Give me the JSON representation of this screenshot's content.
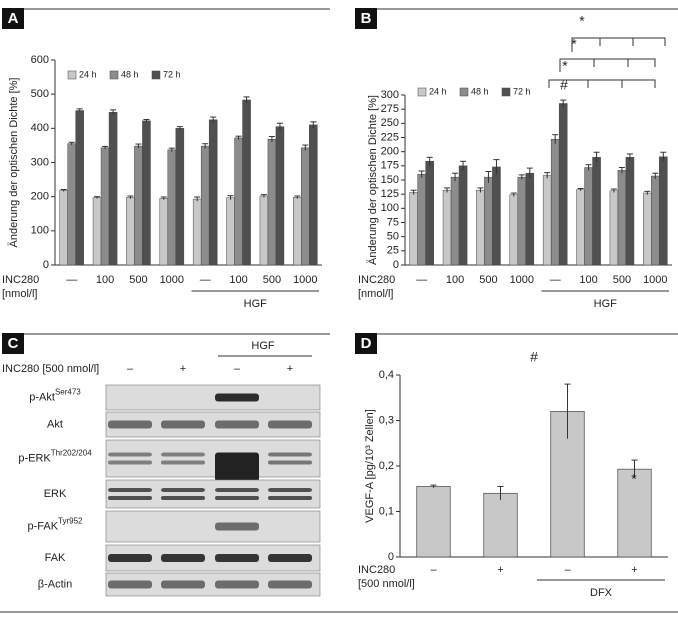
{
  "chart_data": [
    {
      "type": "bar",
      "label": "A",
      "ylabel": "Änderung der optischen Dichte [%]",
      "row_label": [
        "INC280",
        "[nmol/l]"
      ],
      "group_label": "HGF",
      "categories": [
        "—",
        "100",
        "500",
        "1000",
        "—",
        "100",
        "500",
        "1000"
      ],
      "series": [
        {
          "name": "24 h",
          "color": "#c8c8c8",
          "values": [
            218,
            197,
            198,
            195,
            193,
            197,
            202,
            198
          ],
          "errors": [
            3,
            3,
            4,
            4,
            6,
            6,
            4,
            4
          ]
        },
        {
          "name": "48 h",
          "color": "#8c8c8c",
          "values": [
            355,
            343,
            348,
            337,
            348,
            372,
            368,
            343
          ],
          "errors": [
            4,
            4,
            6,
            5,
            7,
            5,
            8,
            8
          ]
        },
        {
          "name": "72 h",
          "color": "#505050",
          "values": [
            452,
            447,
            422,
            400,
            425,
            483,
            405,
            410
          ],
          "errors": [
            5,
            7,
            4,
            5,
            8,
            9,
            10,
            9
          ]
        }
      ],
      "ylim": [
        0,
        600
      ],
      "yticks": [
        0,
        100,
        200,
        300,
        400,
        500,
        600
      ]
    },
    {
      "type": "bar",
      "label": "B",
      "ylabel": "Änderung der optischen Dichte [%]",
      "row_label": [
        "INC280",
        "[nmol/l]"
      ],
      "group_label": "HGF",
      "categories": [
        "—",
        "100",
        "500",
        "1000",
        "—",
        "100",
        "500",
        "1000"
      ],
      "series": [
        {
          "name": "24 h",
          "color": "#c8c8c8",
          "values": [
            128,
            132,
            132,
            124,
            158,
            133,
            131,
            127
          ],
          "errors": [
            4,
            4,
            4,
            3,
            5,
            2,
            3,
            3
          ]
        },
        {
          "name": "48 h",
          "color": "#8c8c8c",
          "values": [
            160,
            155,
            155,
            155,
            222,
            172,
            167,
            157
          ],
          "errors": [
            6,
            7,
            10,
            4,
            8,
            5,
            5,
            5
          ]
        },
        {
          "name": "72 h",
          "color": "#505050",
          "values": [
            183,
            175,
            173,
            162,
            285,
            190,
            190,
            191
          ],
          "errors": [
            7,
            8,
            13,
            9,
            6,
            9,
            6,
            8
          ]
        }
      ],
      "annotations": [
        "#",
        "*",
        "*",
        "*"
      ],
      "ylim": [
        0,
        300
      ],
      "yticks": [
        0,
        25,
        50,
        75,
        100,
        125,
        150,
        175,
        200,
        225,
        250,
        275,
        300
      ]
    },
    {
      "type": "bar",
      "label": "D",
      "ylabel": "VEGF-A [pg/10³ Zellen]",
      "row_label": [
        "INC280",
        "[500 nmol/l]"
      ],
      "group_label": "DFX",
      "categories": [
        "–",
        "+",
        "–",
        "+"
      ],
      "values": [
        0.155,
        0.14,
        0.32,
        0.193
      ],
      "errors": [
        0.003,
        0.015,
        0.06,
        0.02
      ],
      "color": "#c8c8c8",
      "annotations": [
        "#",
        "*"
      ],
      "ylim": [
        0,
        0.4
      ],
      "yticks": [
        0,
        {
          "value": 0.1,
          "label": "0,1"
        },
        {
          "value": 0.2,
          "label": "0,2"
        },
        {
          "value": 0.3,
          "label": "0,3"
        },
        {
          "value": 0.4,
          "label": "0,4"
        }
      ]
    }
  ],
  "blot": {
    "label": "C",
    "row_label": "INC280 [500 nmol/l]",
    "group_label": "HGF",
    "lanes": [
      "–",
      "+",
      "–",
      "+"
    ],
    "rows": [
      {
        "name": "p-Akt",
        "sup": "Ser473"
      },
      {
        "name": "Akt"
      },
      {
        "name": "p-ERK",
        "sup": "Thr202/204"
      },
      {
        "name": "ERK"
      },
      {
        "name": "p-FAK",
        "sup": "Tyr952"
      },
      {
        "name": "FAK"
      },
      {
        "name": "β-Actin"
      }
    ]
  }
}
